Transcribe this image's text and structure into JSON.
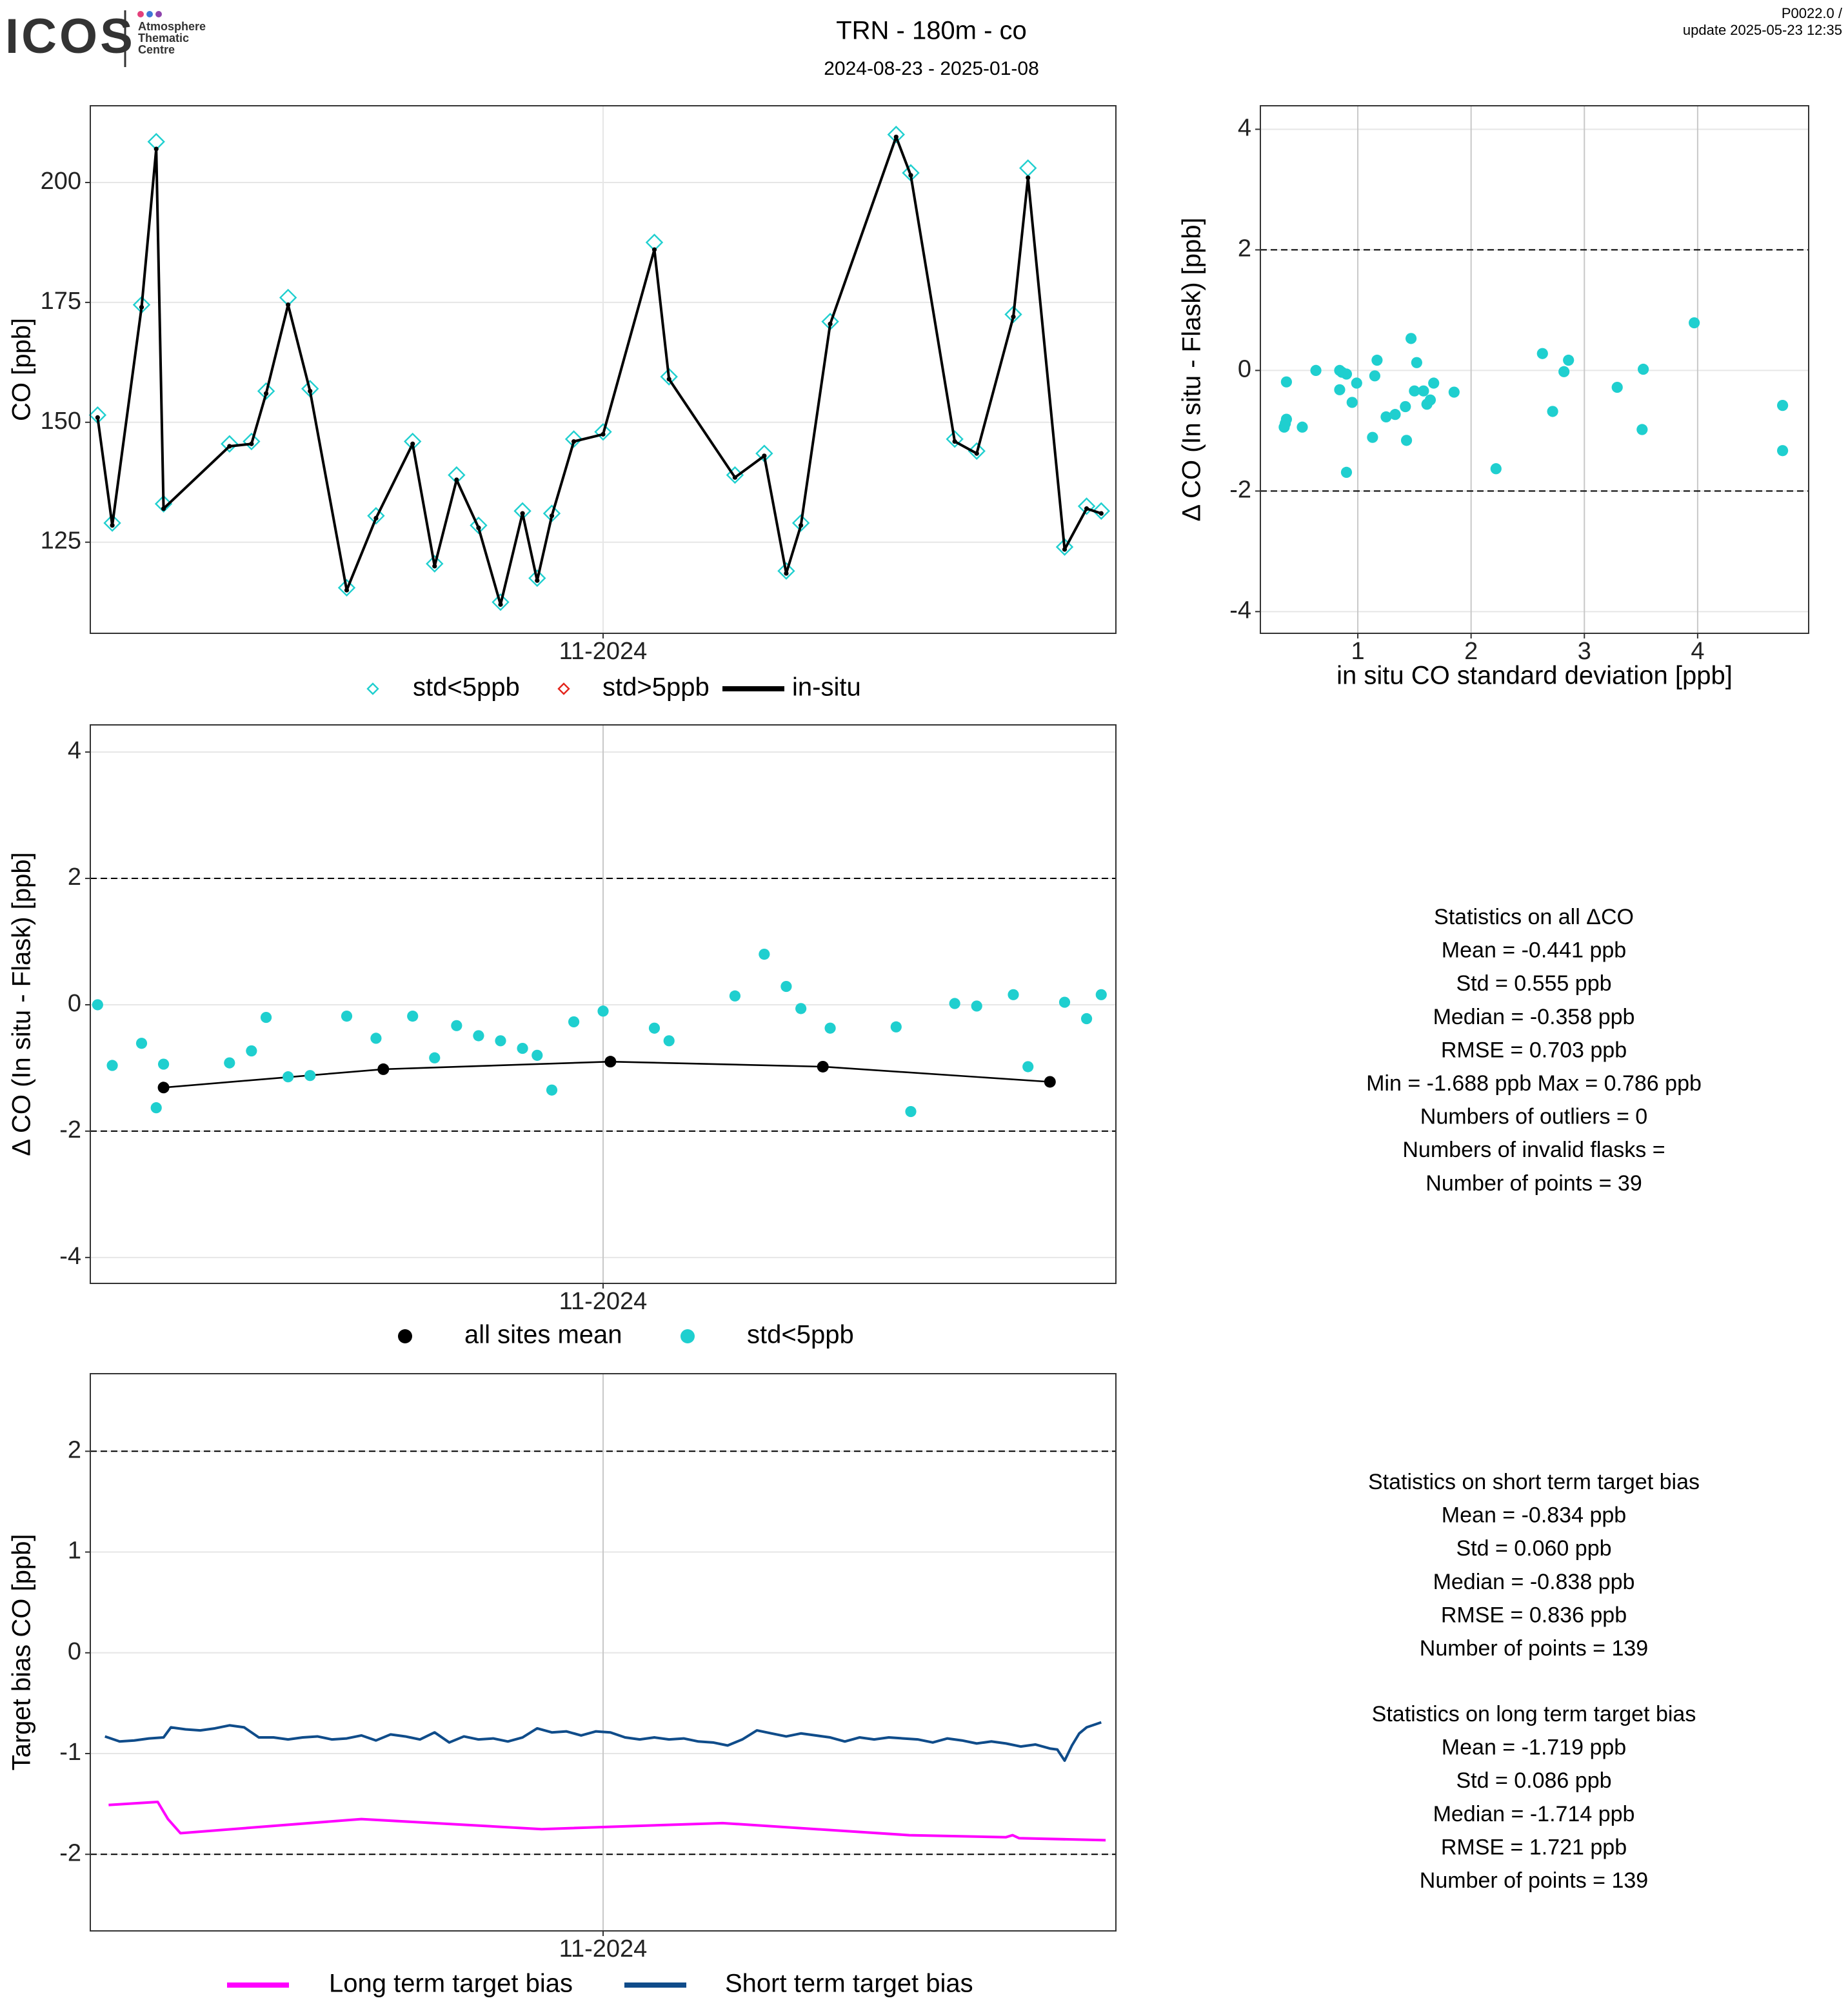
{
  "header": {
    "logo": "ICOS",
    "logo_sub": [
      "Atmosphere",
      "Thematic",
      "Centre"
    ],
    "title": "TRN - 180m - co",
    "subtitle": "2024-08-23 - 2025-01-08",
    "version": "P0022.0 /",
    "update": "update  2025-05-23 12:35"
  },
  "chart_data": [
    {
      "type": "line",
      "y_label": "CO [ppb]",
      "xlim": [
        0,
        140
      ],
      "ylim": [
        106,
        216
      ],
      "xticks": [
        {
          "value": 70,
          "label": "11-2024"
        }
      ],
      "yticks": [
        125,
        150,
        175,
        200
      ],
      "grid": true,
      "series": [
        {
          "name": "std<5ppb",
          "color": "#1fcfcf",
          "style": "diamond",
          "x": [
            1,
            3,
            7,
            9,
            10,
            19,
            22,
            24,
            27,
            30,
            35,
            39,
            44,
            47,
            50,
            53,
            56,
            59,
            61,
            63,
            66,
            70,
            77,
            79,
            88,
            92,
            95,
            97,
            101,
            110,
            112,
            118,
            121,
            126,
            128,
            133,
            136,
            138
          ],
          "values": [
            151.5,
            129,
            174.5,
            208.5,
            133,
            145.5,
            146,
            156.5,
            176,
            157,
            115.5,
            130.5,
            146,
            120.5,
            139,
            128.5,
            112.5,
            131.5,
            117.5,
            131,
            146.5,
            148,
            187.5,
            159.5,
            139,
            143.5,
            119,
            129,
            171,
            210,
            202,
            146.5,
            144,
            172.5,
            203,
            124,
            132.5,
            131.5
          ]
        },
        {
          "name": "std>5ppb",
          "color": "#e3241b",
          "style": "diamond",
          "x": [],
          "values": []
        },
        {
          "name": "in-situ",
          "color": "#000000",
          "style": "line+dot",
          "x": [
            1,
            3,
            7,
            9,
            10,
            19,
            22,
            24,
            27,
            30,
            35,
            39,
            44,
            47,
            50,
            53,
            56,
            59,
            61,
            63,
            66,
            70,
            77,
            79,
            88,
            92,
            95,
            97,
            101,
            110,
            112,
            118,
            121,
            126,
            128,
            133,
            136,
            138
          ],
          "values": [
            151,
            128.5,
            174,
            207,
            132,
            145,
            145.5,
            156,
            174.5,
            156.5,
            115,
            130,
            145.5,
            120,
            138,
            128,
            112,
            131,
            117,
            130.5,
            146,
            147.5,
            186,
            159,
            138.5,
            143,
            118.5,
            128.5,
            170.5,
            209.5,
            201.5,
            146,
            143.5,
            172,
            201,
            123.5,
            132,
            131
          ]
        }
      ]
    },
    {
      "type": "scatter",
      "y_label": "Δ CO (In situ - Flask) [ppb]",
      "x_label": "in situ CO standard deviation [ppb]",
      "xlim": [
        0.14,
        4.98
      ],
      "ylim": [
        -4.36,
        4.39
      ],
      "xticks": [
        1,
        2,
        3,
        4
      ],
      "yticks": [
        -4,
        -2,
        0,
        2,
        4
      ],
      "hlines": [
        -2,
        2
      ],
      "grid": true,
      "series": [
        {
          "color": "#1fcfcf",
          "style": "dot",
          "x": [
            0.35,
            0.37,
            0.36,
            0.37,
            0.51,
            0.63,
            0.84,
            0.84,
            0.9,
            0.9,
            0.95,
            0.99,
            1.13,
            1.15,
            1.17,
            1.25,
            1.33,
            1.42,
            1.43,
            1.47,
            1.5,
            1.52,
            1.58,
            1.61,
            1.64,
            1.67,
            1.85,
            2.22,
            2.63,
            2.72,
            2.82,
            2.86,
            3.29,
            3.51,
            3.52,
            3.97,
            4.75,
            4.75,
            0.86
          ],
          "values": [
            -0.94,
            -0.81,
            -0.88,
            -0.19,
            -0.94,
            0,
            0,
            -0.32,
            -0.06,
            -1.69,
            -0.53,
            -0.21,
            -1.11,
            -0.09,
            0.17,
            -0.77,
            -0.73,
            -0.6,
            -1.16,
            0.53,
            -0.34,
            0.13,
            -0.34,
            -0.56,
            -0.49,
            -0.21,
            -0.36,
            -1.63,
            0.28,
            -0.68,
            -0.02,
            0.17,
            -0.28,
            -0.98,
            0.02,
            0.79,
            -0.58,
            -1.33,
            -0.03
          ]
        }
      ]
    },
    {
      "type": "scatter",
      "y_label": "Δ CO (In situ - Flask) [ppb]",
      "xlim": [
        0,
        140
      ],
      "ylim": [
        -4.41,
        4.43
      ],
      "xticks": [
        {
          "value": 70,
          "label": "11-2024"
        }
      ],
      "yticks": [
        -4,
        -2,
        0,
        2,
        4
      ],
      "hlines": [
        -2,
        2
      ],
      "grid": true,
      "series": [
        {
          "name": "all sites mean",
          "color": "#000000",
          "style": "line+bigdot",
          "x": [
            10,
            40,
            71,
            100,
            131
          ],
          "values": [
            -1.31,
            -1.02,
            -0.9,
            -0.98,
            -1.22
          ]
        },
        {
          "name": "std<5ppb",
          "color": "#1fcfcf",
          "style": "dot",
          "x": [
            1,
            3,
            7,
            9,
            10,
            19,
            22,
            24,
            27,
            30,
            35,
            39,
            44,
            47,
            50,
            53,
            56,
            59,
            61,
            63,
            66,
            70,
            77,
            79,
            88,
            92,
            95,
            97,
            101,
            110,
            112,
            118,
            121,
            126,
            128,
            133,
            136,
            138
          ],
          "values": [
            0,
            -0.96,
            -0.61,
            -1.63,
            -0.94,
            -0.92,
            -0.73,
            -0.2,
            -1.14,
            -1.12,
            -0.18,
            -0.53,
            -0.18,
            -0.84,
            -0.33,
            -0.49,
            -0.57,
            -0.69,
            -0.8,
            -1.35,
            -0.27,
            -0.1,
            -0.37,
            -0.57,
            0.14,
            0.8,
            0.29,
            -0.06,
            -0.37,
            -0.35,
            -1.69,
            0.02,
            -0.02,
            0.16,
            -0.98,
            0.04,
            -0.22,
            0.16
          ]
        }
      ]
    },
    {
      "type": "line",
      "y_label": "Target bias CO [ppb]",
      "xlim": [
        0,
        140
      ],
      "ylim": [
        -2.76,
        2.77
      ],
      "xticks": [
        {
          "value": 70,
          "label": "11-2024"
        }
      ],
      "yticks": [
        -2,
        -1,
        0,
        1,
        2
      ],
      "hlines": [
        -2,
        2
      ],
      "grid": true,
      "series": [
        {
          "name": "Long term target bias",
          "color": "#ff00ff",
          "style": "line",
          "x": [
            2.5,
            9.2,
            10.6,
            12.3,
            37,
            61.6,
            86.3,
            111.8,
            125,
            125.9,
            126.8,
            138.6
          ],
          "values": [
            -1.51,
            -1.48,
            -1.65,
            -1.79,
            -1.65,
            -1.75,
            -1.69,
            -1.81,
            -1.83,
            -1.81,
            -1.84,
            -1.86
          ]
        },
        {
          "name": "Short term target bias",
          "color": "#0f4c8a",
          "style": "line",
          "x": [
            2,
            4,
            6,
            8,
            10,
            11,
            13,
            15,
            17,
            19,
            21,
            23,
            25,
            27,
            29,
            31,
            33,
            35,
            37,
            39,
            41,
            43,
            45,
            47,
            49,
            51,
            53,
            55,
            57,
            59,
            61,
            63,
            65,
            67,
            69,
            71,
            73,
            75,
            77,
            79,
            81,
            83,
            85,
            87,
            89,
            91,
            93,
            95,
            97,
            99,
            101,
            103,
            105,
            107,
            109,
            111,
            113,
            115,
            117,
            119,
            121,
            123,
            125,
            127,
            129,
            131,
            132,
            133,
            134,
            135,
            136,
            138
          ],
          "values": [
            -0.83,
            -0.88,
            -0.87,
            -0.85,
            -0.84,
            -0.74,
            -0.76,
            -0.77,
            -0.75,
            -0.72,
            -0.74,
            -0.84,
            -0.84,
            -0.86,
            -0.84,
            -0.83,
            -0.86,
            -0.85,
            -0.82,
            -0.87,
            -0.81,
            -0.83,
            -0.86,
            -0.79,
            -0.89,
            -0.83,
            -0.86,
            -0.85,
            -0.88,
            -0.84,
            -0.75,
            -0.79,
            -0.78,
            -0.82,
            -0.78,
            -0.79,
            -0.84,
            -0.86,
            -0.84,
            -0.86,
            -0.85,
            -0.88,
            -0.89,
            -0.92,
            -0.86,
            -0.77,
            -0.8,
            -0.83,
            -0.8,
            -0.82,
            -0.84,
            -0.88,
            -0.84,
            -0.86,
            -0.84,
            -0.85,
            -0.86,
            -0.89,
            -0.85,
            -0.87,
            -0.9,
            -0.88,
            -0.9,
            -0.93,
            -0.91,
            -0.95,
            -0.96,
            -1.07,
            -0.92,
            -0.8,
            -0.74,
            -0.69
          ]
        }
      ]
    }
  ],
  "stats": [
    {
      "title": "Statistics on all ΔCO",
      "lines": [
        "Mean =  -0.441 ppb",
        "Std =  0.555 ppb",
        "Median =  -0.358 ppb",
        "RMSE =  0.703 ppb",
        "Min =  -1.688 ppb Max =  0.786 ppb",
        "Numbers of outliers =  0",
        "Numbers of invalid flasks =",
        "Number of points =  39"
      ]
    },
    {
      "title": "Statistics on short term target bias",
      "lines": [
        "Mean =  -0.834 ppb",
        "Std =  0.060 ppb",
        "Median =  -0.838 ppb",
        "RMSE =  0.836 ppb",
        "Number of points =  139"
      ]
    },
    {
      "title": "Statistics on long term target bias",
      "lines": [
        "Mean =  -1.719 ppb",
        "Std =  0.086 ppb",
        "Median =  -1.714 ppb",
        "RMSE =  1.721 ppb",
        "Number of points =  139"
      ]
    }
  ]
}
